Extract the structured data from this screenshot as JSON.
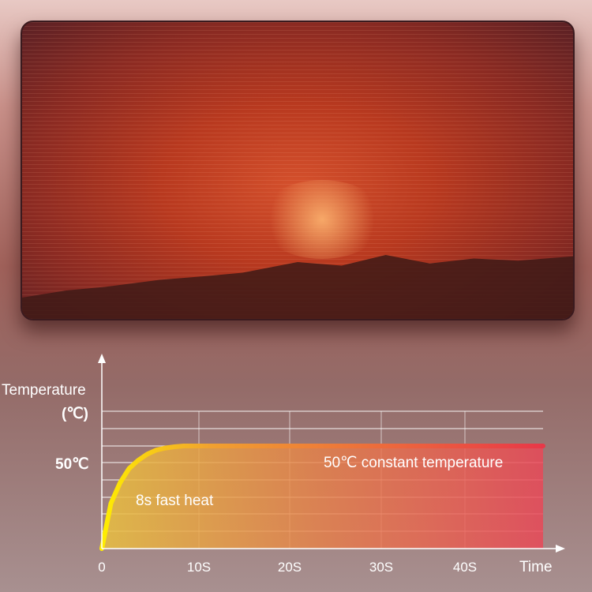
{
  "chart_data": {
    "type": "area",
    "ylabel": "Temperature",
    "yunit": "(℃)",
    "xlabel": "Time",
    "x_ticks": [
      "0",
      "10S",
      "20S",
      "30S",
      "40S"
    ],
    "y_ticks": [
      "50℃"
    ],
    "series": [
      {
        "x": [
          0,
          1,
          2,
          3,
          4,
          5,
          6,
          7,
          8,
          9,
          47
        ],
        "y": [
          0,
          22,
          32,
          39,
          43,
          46,
          48,
          49,
          49.6,
          50,
          50
        ]
      }
    ],
    "xlim": [
      0,
      48
    ],
    "grid": true,
    "annotations": [
      "8s fast heat",
      "50℃ constant temperature"
    ],
    "colors": {
      "curve_start": "#ffee00",
      "curve_end": "#f0a030",
      "fill_left": "#e0b040",
      "fill_right": "#e04050"
    }
  }
}
